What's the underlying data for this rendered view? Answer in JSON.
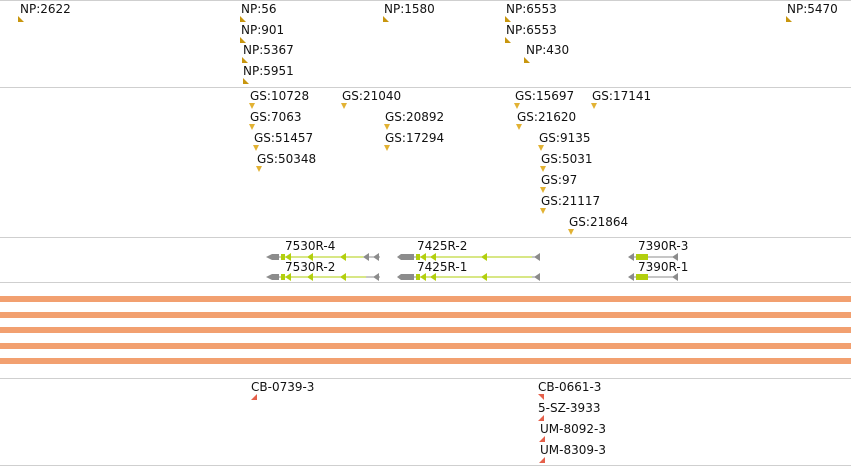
{
  "colors": {
    "separator": "#cfcfcf",
    "marker_gold": "#c8960e",
    "marker_gs": "#e2b233",
    "marker_red": "#e5604a",
    "gene_green": "#b2cf0e",
    "gene_grey": "#8c8c8c",
    "band_orange": "#f2a070"
  },
  "tracks": {
    "np": {
      "features": [
        {
          "label": "NP:2622"
        },
        {
          "label": "NP:56"
        },
        {
          "label": "NP:901"
        },
        {
          "label": "NP:5367"
        },
        {
          "label": "NP:5951"
        },
        {
          "label": "NP:1580"
        },
        {
          "label": "NP:6553"
        },
        {
          "label": "NP:6553"
        },
        {
          "label": "NP:430"
        },
        {
          "label": "NP:5470"
        }
      ]
    },
    "gs": {
      "features": [
        {
          "label": "GS:10728"
        },
        {
          "label": "GS:7063"
        },
        {
          "label": "GS:51457"
        },
        {
          "label": "GS:50348"
        },
        {
          "label": "GS:21040"
        },
        {
          "label": "GS:20892"
        },
        {
          "label": "GS:17294"
        },
        {
          "label": "GS:15697"
        },
        {
          "label": "GS:21620"
        },
        {
          "label": "GS:17141"
        },
        {
          "label": "GS:9135"
        },
        {
          "label": "GS:5031"
        },
        {
          "label": "GS:97"
        },
        {
          "label": "GS:21117"
        },
        {
          "label": "GS:21864"
        }
      ]
    },
    "genes": {
      "features": [
        {
          "label": "7530R-4"
        },
        {
          "label": "7530R-2"
        },
        {
          "label": "7425R-2"
        },
        {
          "label": "7425R-1"
        },
        {
          "label": "7390R-3"
        },
        {
          "label": "7390R-1"
        }
      ]
    },
    "bands": {
      "count": 5
    },
    "cb": {
      "features": [
        {
          "label": "CB-0739-3"
        },
        {
          "label": "CB-0661-3"
        },
        {
          "label": "5-SZ-3933"
        },
        {
          "label": "UM-8092-3"
        },
        {
          "label": "UM-8309-3"
        }
      ]
    }
  }
}
